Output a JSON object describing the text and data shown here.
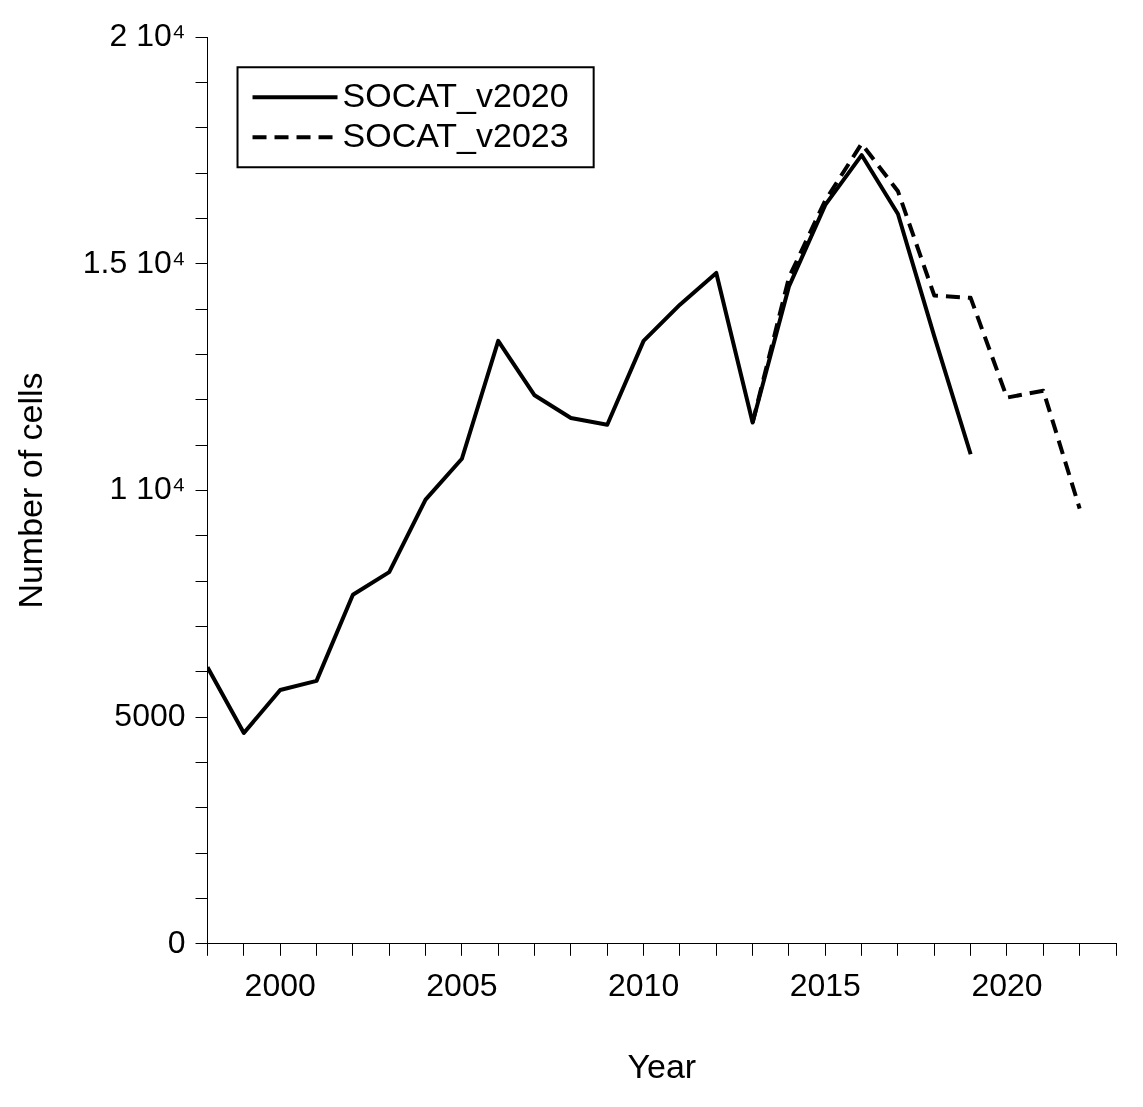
{
  "chart_data": {
    "type": "line",
    "xlabel": "Year",
    "ylabel": "Number of cells",
    "xlim": [
      1998,
      2023
    ],
    "ylim": [
      0,
      20000
    ],
    "xticks": [
      {
        "value": 1998,
        "label": null
      },
      {
        "value": 1999,
        "label": null
      },
      2000,
      {
        "value": 2001,
        "label": null
      },
      {
        "value": 2002,
        "label": null
      },
      {
        "value": 2003,
        "label": null
      },
      {
        "value": 2004,
        "label": null
      },
      2005,
      {
        "value": 2006,
        "label": null
      },
      {
        "value": 2007,
        "label": null
      },
      {
        "value": 2008,
        "label": null
      },
      {
        "value": 2009,
        "label": null
      },
      2010,
      {
        "value": 2011,
        "label": null
      },
      {
        "value": 2012,
        "label": null
      },
      {
        "value": 2013,
        "label": null
      },
      {
        "value": 2014,
        "label": null
      },
      2015,
      {
        "value": 2016,
        "label": null
      },
      {
        "value": 2017,
        "label": null
      },
      {
        "value": 2018,
        "label": null
      },
      {
        "value": 2019,
        "label": null
      },
      2020,
      {
        "value": 2021,
        "label": null
      },
      {
        "value": 2022,
        "label": null
      },
      {
        "value": 2023,
        "label": null
      }
    ],
    "yticks": [
      0,
      {
        "value": 1000,
        "label": null
      },
      {
        "value": 2000,
        "label": null
      },
      {
        "value": 3000,
        "label": null
      },
      {
        "value": 4000,
        "label": null
      },
      5000,
      {
        "value": 6000,
        "label": null
      },
      {
        "value": 7000,
        "label": null
      },
      {
        "value": 8000,
        "label": null
      },
      {
        "value": 9000,
        "label": null
      },
      {
        "value": 10000,
        "label": "1 10⁴"
      },
      {
        "value": 11000,
        "label": null
      },
      {
        "value": 12000,
        "label": null
      },
      {
        "value": 13000,
        "label": null
      },
      {
        "value": 14000,
        "label": null
      },
      {
        "value": 15000,
        "label": "1.5 10⁴"
      },
      {
        "value": 16000,
        "label": null
      },
      {
        "value": 17000,
        "label": null
      },
      {
        "value": 18000,
        "label": null
      },
      {
        "value": 19000,
        "label": null
      },
      {
        "value": 20000,
        "label": "2 10⁴"
      }
    ],
    "grid": false,
    "legend": "top left",
    "marker": "none",
    "series": [
      {
        "name": "SOCAT_v2020",
        "color": "#000000",
        "line_style": "solid",
        "x": [
          1998,
          1999,
          2000,
          2001,
          2002,
          2003,
          2004,
          2005,
          2006,
          2007,
          2008,
          2009,
          2010,
          2011,
          2012,
          2013,
          2014,
          2015,
          2016,
          2017,
          2018,
          2019
        ],
        "values": [
          6100,
          4650,
          5600,
          5800,
          7700,
          8200,
          9800,
          10700,
          13300,
          12100,
          11600,
          11450,
          13300,
          14100,
          14800,
          11500,
          14500,
          16300,
          17400,
          16100,
          13400,
          10800
        ]
      },
      {
        "name": "SOCAT_v2023",
        "color": "#000000",
        "line_style": "dashed",
        "x": [
          2013,
          2014,
          2015,
          2016,
          2017,
          2018,
          2019,
          2020,
          2021,
          2022
        ],
        "values": [
          11500,
          14700,
          16400,
          17650,
          16600,
          14300,
          14250,
          12050,
          12200,
          9600
        ]
      }
    ]
  }
}
